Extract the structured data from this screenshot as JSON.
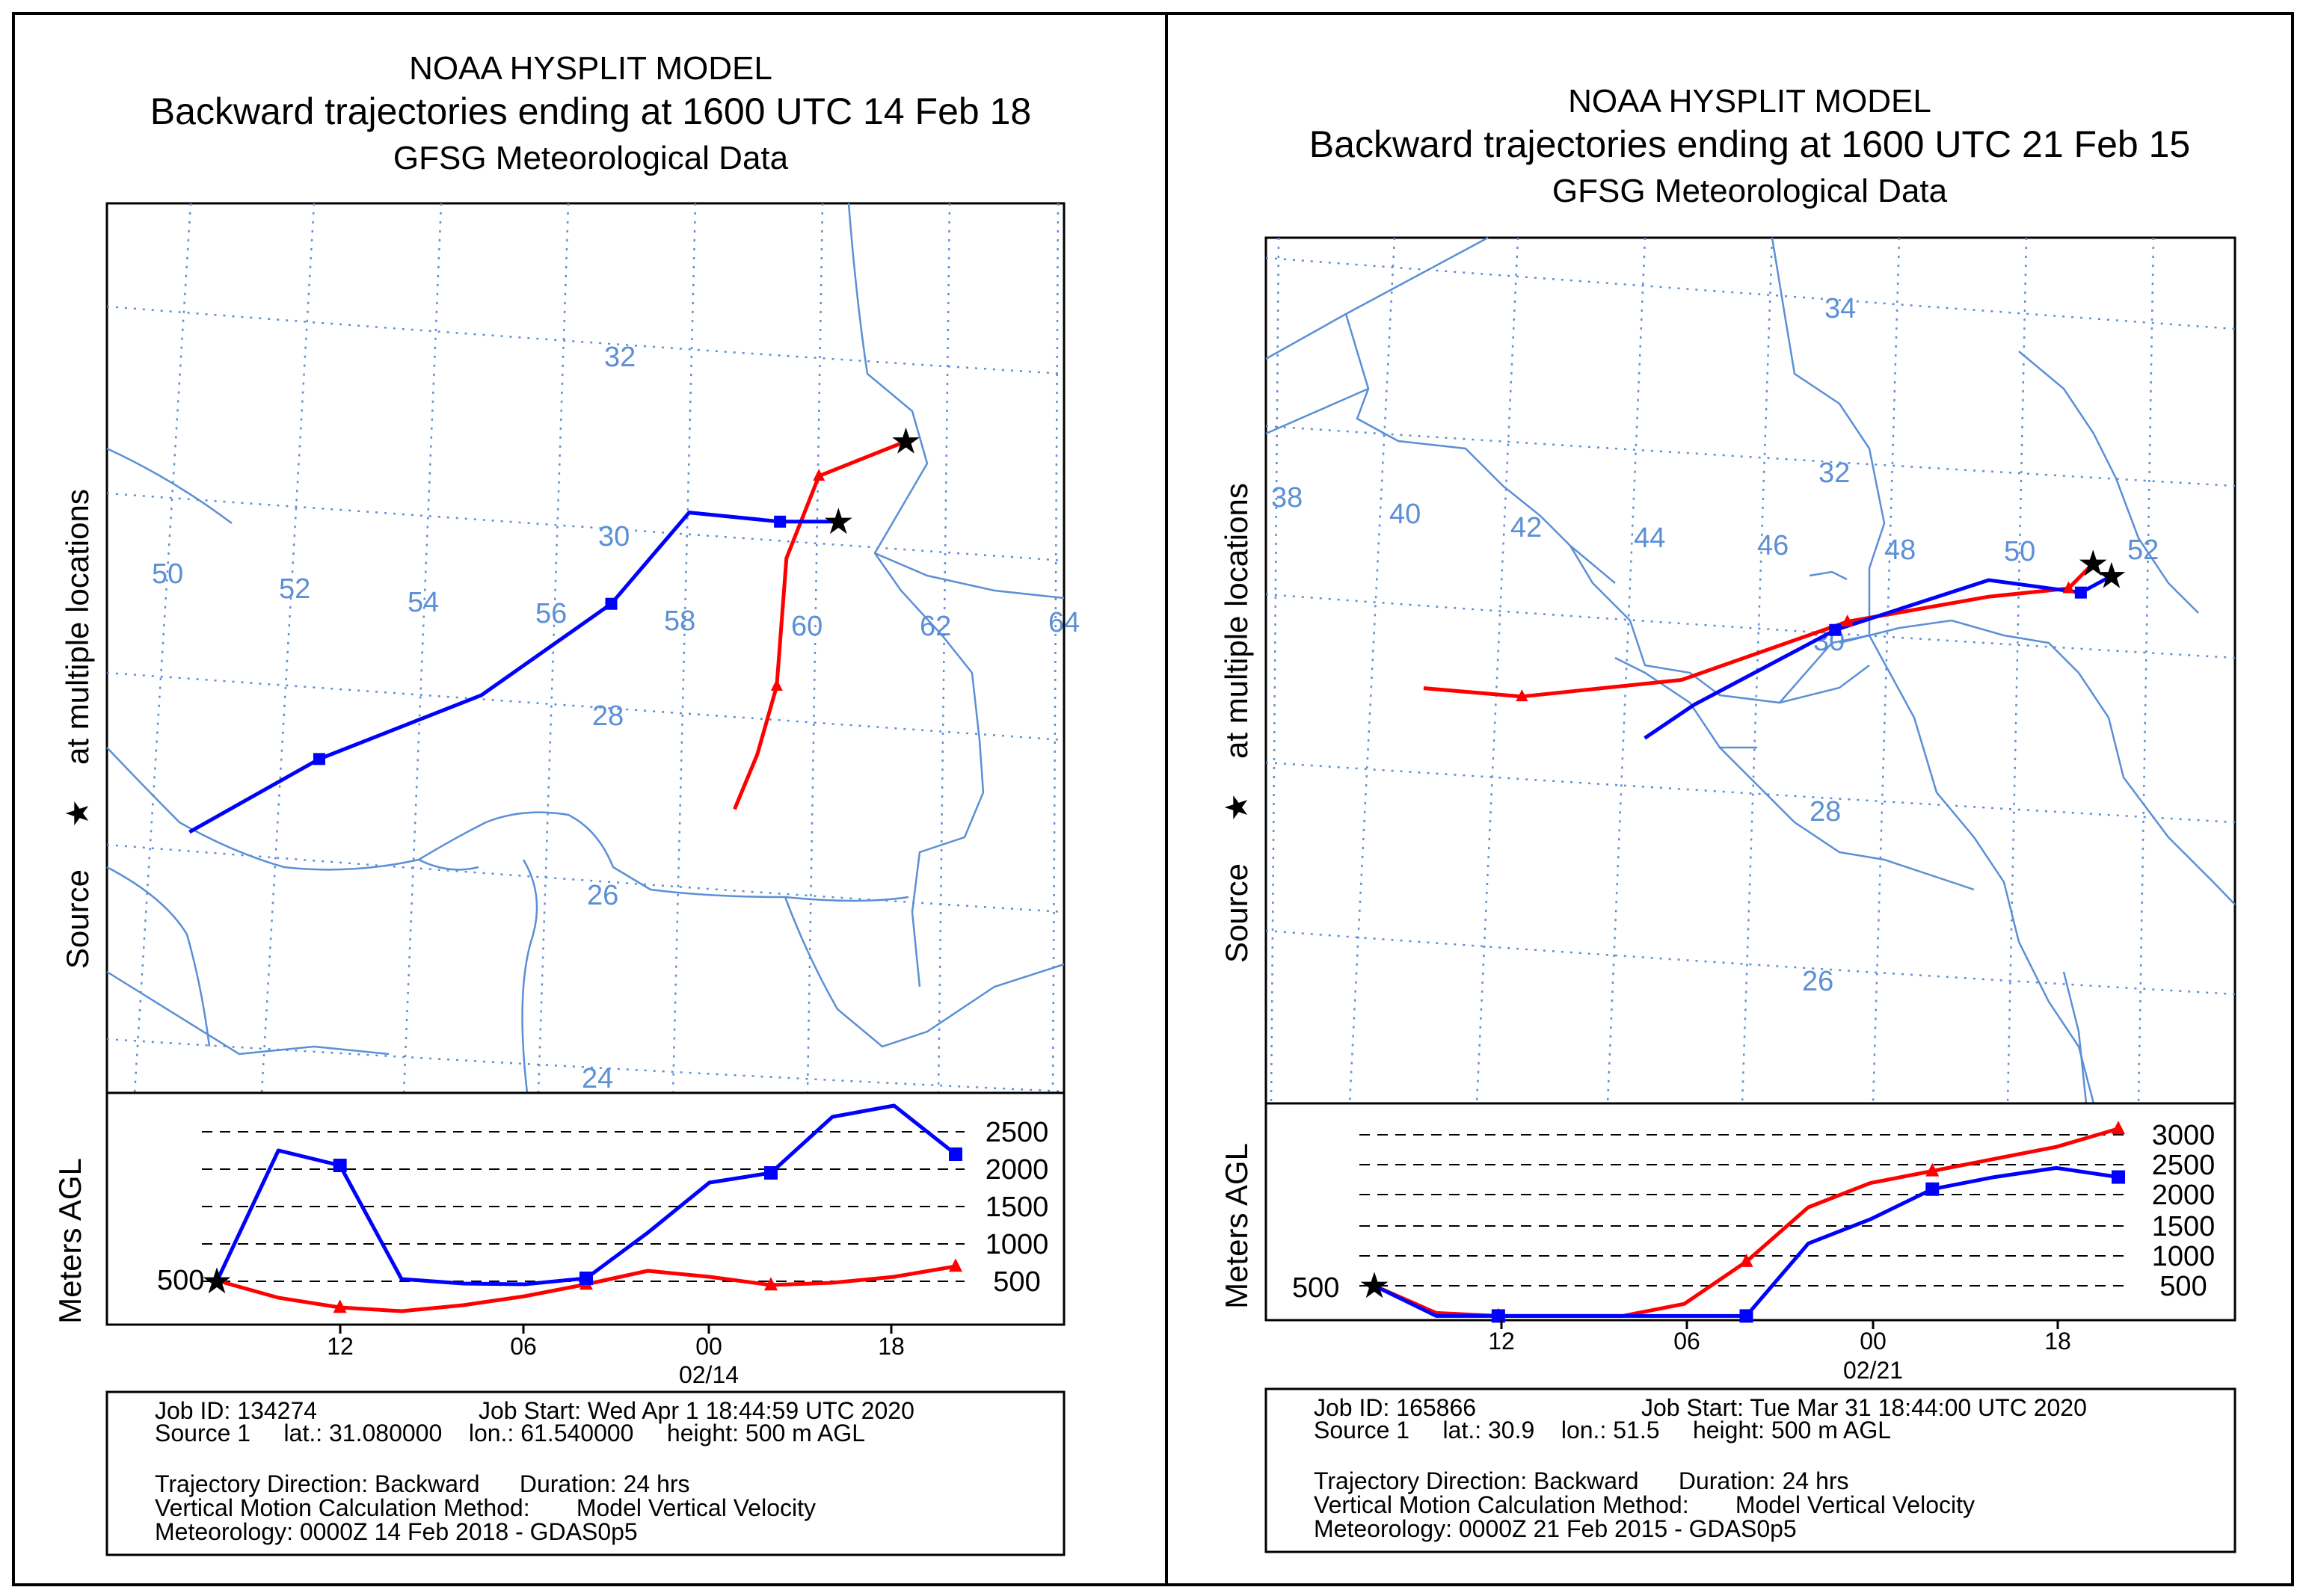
{
  "chart_data": [
    {
      "type": "line",
      "kind": "hysplit-backward-trajectory",
      "title": {
        "line1": "NOAA HYSPLIT MODEL",
        "line2": "Backward trajectories ending at 1600 UTC 14 Feb 18",
        "line3": "GFSG Meteorological Data"
      },
      "map": {
        "side_label_source": "Source",
        "side_label_locations": "at multiple locations",
        "source": {
          "lat": 31.08,
          "lon": 61.54
        },
        "lat_labels": [
          32,
          30,
          28,
          26,
          24
        ],
        "lon_labels": [
          50,
          52,
          54,
          56,
          58,
          60,
          62,
          64
        ],
        "series": [
          {
            "name": "trajectory-1",
            "color": "#ff0000",
            "marker": "triangle",
            "path": [
              [
                61.54,
                31.08
              ],
              [
                60.2,
                30.7
              ],
              [
                59.7,
                29.8
              ],
              [
                59.55,
                28.4
              ],
              [
                59.25,
                27.65
              ],
              [
                58.9,
                27.05
              ]
            ]
          },
          {
            "name": "trajectory-2",
            "color": "#0000ff",
            "marker": "square",
            "path": [
              [
                60.5,
                30.2
              ],
              [
                59.6,
                30.2
              ],
              [
                58.2,
                30.3
              ],
              [
                57.0,
                29.3
              ],
              [
                55.0,
                28.3
              ],
              [
                52.5,
                27.6
              ],
              [
                50.5,
                26.8
              ]
            ]
          }
        ]
      },
      "height_panel": {
        "ylabel": "Meters AGL",
        "source_level_label": "500",
        "y_ticks": [
          2500,
          2000,
          1500,
          1000,
          500
        ],
        "x_ticks": [
          "12",
          "06",
          "00",
          "18"
        ],
        "date_label": "02/14",
        "hours": [
          -24,
          -22,
          -20,
          -18,
          -16,
          -14,
          -12,
          -10,
          -8,
          -6,
          -4,
          -2,
          0
        ],
        "series": [
          {
            "name": "trajectory-1",
            "color": "#ff0000",
            "marker": "triangle",
            "values": [
              510,
              280,
              150,
              100,
              180,
              300,
              460,
              640,
              560,
              450,
              480,
              560,
              700
            ]
          },
          {
            "name": "trajectory-2",
            "color": "#0000ff",
            "marker": "square",
            "values": [
              500,
              2250,
              2050,
              530,
              470,
              460,
              540,
              1150,
              1820,
              1950,
              2700,
              2850,
              2200
            ]
          }
        ]
      },
      "info": {
        "job_id": "Job ID: 134274",
        "job_start": "Job Start: Wed Apr  1 18:44:59 UTC 2020",
        "source_line": "Source 1     lat.: 31.080000    lon.: 61.540000     height: 500 m AGL",
        "direction": "Trajectory Direction: Backward      Duration: 24 hrs",
        "vertical": "Vertical Motion Calculation Method:       Model Vertical Velocity",
        "meteorology": "Meteorology: 0000Z 14 Feb 2018 - GDAS0p5"
      }
    },
    {
      "type": "line",
      "kind": "hysplit-backward-trajectory",
      "title": {
        "line1": "NOAA HYSPLIT MODEL",
        "line2": "Backward trajectories ending at 1600 UTC 21 Feb 15",
        "line3": "GFSG Meteorological Data"
      },
      "map": {
        "side_label_source": "Source",
        "side_label_locations": "at multiple locations",
        "source": {
          "lat": 30.9,
          "lon": 51.5
        },
        "lat_labels": [
          34,
          32,
          30,
          28,
          26
        ],
        "lon_labels": [
          38,
          40,
          42,
          44,
          46,
          48,
          50,
          52
        ],
        "series": [
          {
            "name": "trajectory-1",
            "color": "#ff0000",
            "marker": "triangle",
            "path": [
              [
                51.2,
                31.0
              ],
              [
                50.8,
                30.7
              ],
              [
                49.5,
                30.6
              ],
              [
                47.2,
                30.3
              ],
              [
                44.5,
                29.6
              ],
              [
                41.9,
                29.4
              ],
              [
                40.3,
                29.5
              ]
            ]
          },
          {
            "name": "trajectory-2",
            "color": "#0000ff",
            "marker": "square",
            "path": [
              [
                51.5,
                30.85
              ],
              [
                51.0,
                30.65
              ],
              [
                49.5,
                30.8
              ],
              [
                47.0,
                30.2
              ],
              [
                44.7,
                29.3
              ],
              [
                43.9,
                28.9
              ]
            ]
          }
        ]
      },
      "height_panel": {
        "ylabel": "Meters AGL",
        "source_level_label": "500",
        "y_ticks": [
          3000,
          2500,
          2000,
          1500,
          1000,
          500
        ],
        "x_ticks": [
          "12",
          "06",
          "00",
          "18"
        ],
        "date_label": "02/21",
        "hours": [
          -24,
          -22,
          -20,
          -18,
          -16,
          -14,
          -12,
          -10,
          -8,
          -6,
          -4,
          -2,
          0
        ],
        "series": [
          {
            "name": "trajectory-1",
            "color": "#ff0000",
            "marker": "triangle",
            "values": [
              500,
              50,
              0,
              0,
              0,
              200,
              900,
              1800,
              2200,
              2400,
              2600,
              2800,
              3100
            ]
          },
          {
            "name": "trajectory-2",
            "color": "#0000ff",
            "marker": "square",
            "values": [
              500,
              0,
              0,
              0,
              0,
              0,
              0,
              1200,
              1600,
              2100,
              2300,
              2450,
              2300
            ]
          }
        ]
      },
      "info": {
        "job_id": "Job ID: 165866",
        "job_start": "Job Start: Tue Mar 31 18:44:00 UTC 2020",
        "source_line": "Source 1     lat.: 30.9    lon.: 51.5     height: 500 m AGL",
        "direction": "Trajectory Direction: Backward      Duration: 24 hrs",
        "vertical": "Vertical Motion Calculation Method:       Model Vertical Velocity",
        "meteorology": "Meteorology: 0000Z 21 Feb 2015 - GDAS0p5"
      }
    }
  ]
}
